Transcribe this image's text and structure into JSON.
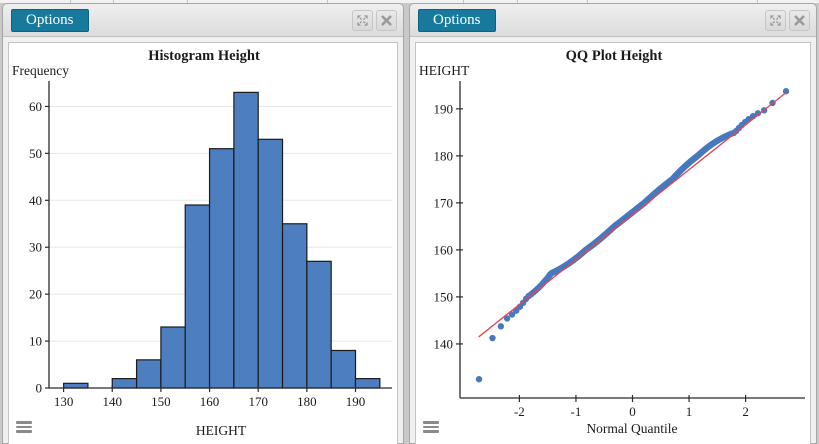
{
  "colors": {
    "accent_teal": "#17799b",
    "bar_fill": "#4d7ec0",
    "bar_stroke": "#1b1b1b",
    "dot_fill": "#4679bd",
    "fit_line": "#e04858",
    "grid": "#e8e8e8",
    "axis": "#2b2b2b",
    "panel_bg": "#f0f0f0",
    "chart_bg": "#ffffff"
  },
  "panels": [
    {
      "id": "histogram",
      "options_label": "Options",
      "title": "Histogram Height",
      "y_axis_label": "Frequency",
      "x_axis_label": "HEIGHT",
      "controls": [
        "expand-icon",
        "close-icon"
      ],
      "menu_icon": "hamburger-menu"
    },
    {
      "id": "qq-plot",
      "options_label": "Options",
      "title": "QQ Plot Height",
      "y_axis_label": "HEIGHT",
      "x_axis_label": "Normal Quantile",
      "controls": [
        "expand-icon",
        "close-icon"
      ],
      "menu_icon": "hamburger-menu"
    }
  ],
  "chart_data": [
    {
      "type": "bar",
      "variant": "histogram",
      "title": "Histogram Height",
      "xlabel": "HEIGHT",
      "ylabel": "Frequency",
      "bin_start": 130,
      "bin_width": 5,
      "counts": [
        1,
        0,
        2,
        6,
        13,
        39,
        51,
        63,
        53,
        35,
        27,
        8,
        2
      ],
      "n_total": 300,
      "x_ticks": [
        130,
        140,
        150,
        160,
        170,
        180,
        190
      ],
      "y_ticks": [
        0,
        10,
        20,
        30,
        40,
        50,
        60
      ],
      "xlim": [
        127,
        197.5
      ],
      "ylim": [
        0,
        65
      ],
      "grid": true
    },
    {
      "type": "scatter",
      "variant": "qq-plot",
      "title": "QQ Plot Height",
      "xlabel": "Normal Quantile",
      "ylabel": "HEIGHT",
      "n": 300,
      "sample_bins": {
        "bin_start": 130,
        "bin_width": 5,
        "counts": [
          1,
          0,
          2,
          6,
          13,
          39,
          51,
          63,
          53,
          35,
          27,
          8,
          2
        ]
      },
      "plotting_position": "i/(n+1)",
      "x_ticks": [
        -2,
        -1,
        0,
        1,
        2
      ],
      "y_ticks": [
        140,
        150,
        160,
        170,
        180,
        190
      ],
      "xlim": [
        -3.05,
        3.05
      ],
      "ylim": [
        128.5,
        195.5
      ],
      "fit_line": {
        "slope": 9.56,
        "intercept": 167.5,
        "x_start": -2.72,
        "x_end": 2.72
      },
      "grid": false,
      "notable_points": [
        {
          "x": -2.72,
          "y": 134.7,
          "note": "low outlier below fit line"
        },
        {
          "x": 2.72,
          "y": 193.5,
          "note": "maximum point at line end"
        }
      ]
    }
  ]
}
